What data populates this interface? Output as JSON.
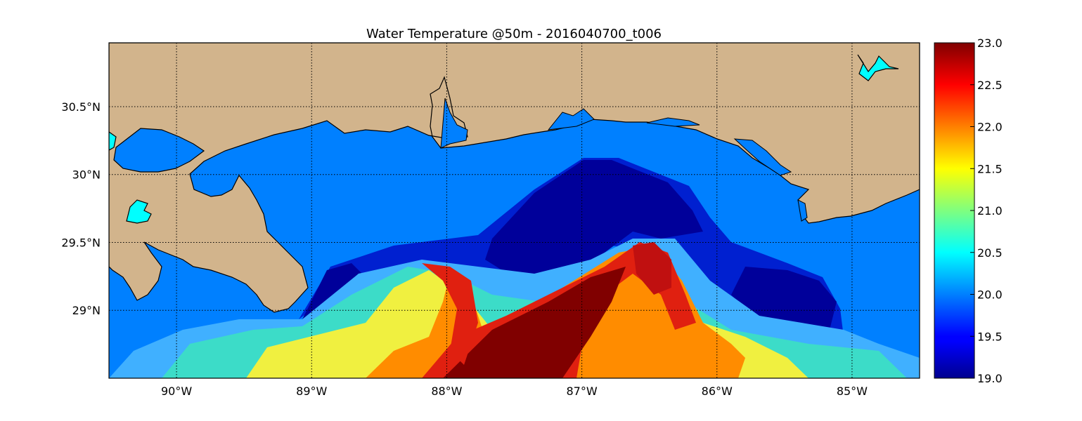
{
  "title": "Water Temperature @50m - 2016040700_t006",
  "map": {
    "lon_range": [
      -90.5,
      -84.5
    ],
    "lat_range": [
      28.5,
      30.97
    ],
    "grid": "dotted",
    "colors": {
      "land": "#d2b48c",
      "water_default": "#0080ff",
      "lake": "#00ffff",
      "coast": "#000000"
    },
    "x_ticks": [
      {
        "value": -90,
        "label": "90°W"
      },
      {
        "value": -89,
        "label": "89°W"
      },
      {
        "value": -88,
        "label": "88°W"
      },
      {
        "value": -87,
        "label": "87°W"
      },
      {
        "value": -86,
        "label": "86°W"
      },
      {
        "value": -85,
        "label": "85°W"
      }
    ],
    "y_ticks": [
      {
        "value": 29.0,
        "label": "29°N"
      },
      {
        "value": 29.5,
        "label": "29.5°N"
      },
      {
        "value": 30.0,
        "label": "30°N"
      },
      {
        "value": 30.5,
        "label": "30.5°N"
      }
    ]
  },
  "colorbar": {
    "colormap": "jet",
    "vmin": 19.0,
    "vmax": 23.0,
    "ticks": [
      {
        "value": 19.0,
        "label": "19.0"
      },
      {
        "value": 19.5,
        "label": "19.5"
      },
      {
        "value": 20.0,
        "label": "20.0"
      },
      {
        "value": 20.5,
        "label": "20.5"
      },
      {
        "value": 21.0,
        "label": "21.0"
      },
      {
        "value": 21.5,
        "label": "21.5"
      },
      {
        "value": 22.0,
        "label": "22.0"
      },
      {
        "value": 22.5,
        "label": "22.5"
      },
      {
        "value": 23.0,
        "label": "23.0"
      }
    ]
  }
}
